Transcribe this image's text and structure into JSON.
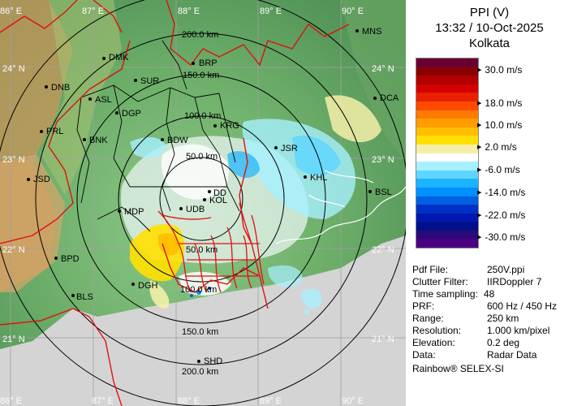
{
  "header": {
    "product": "PPI (V)",
    "datetime": "13:32 / 10-Oct-2025",
    "station": "Kolkata"
  },
  "legend": {
    "colors": [
      "#6a0032",
      "#8a0000",
      "#b00000",
      "#d40000",
      "#e82000",
      "#ff4a00",
      "#ff7a00",
      "#ff9c00",
      "#ffbe00",
      "#ffe000",
      "#f4efa8",
      "#ffffff",
      "#a6f0ff",
      "#5fd6ff",
      "#1ab4ff",
      "#0090ff",
      "#0060e0",
      "#0030c8",
      "#0018b0",
      "#00108a",
      "#2a0a78",
      "#4a0080"
    ],
    "labels": [
      "30.0 m/s",
      "18.0 m/s",
      "10.0 m/s",
      "2.0 m/s",
      "-6.0 m/s",
      "-14.0 m/s",
      "-22.0 m/s",
      "-30.0 m/s"
    ]
  },
  "info": [
    {
      "key": "Pdf File:",
      "value": "250V.ppi"
    },
    {
      "key": "Clutter Filter:",
      "value": "IIRDoppler 7"
    },
    {
      "key": "Time sampling:",
      "value": "48"
    },
    {
      "key": "PRF:",
      "value": "600 Hz / 450 Hz"
    },
    {
      "key": "Range:",
      "value": "250 km"
    },
    {
      "key": "Resolution:",
      "value": "1.000 km/pixel"
    },
    {
      "key": "Elevation:",
      "value": "0.2 deg"
    },
    {
      "key": "Data:",
      "value": "Radar Data"
    }
  ],
  "credit": "Rainbow® SELEX-SI",
  "map": {
    "lon_labels_top": [
      "86° E",
      "87° E",
      "88° E",
      "89° E",
      "90° E"
    ],
    "lon_labels_bottom": [
      "86° E",
      "87° E",
      "88° E",
      "89° E",
      "90° E"
    ],
    "lat_labels_left": [
      "24° N",
      "23° N",
      "22° N",
      "21° N"
    ],
    "lat_labels_right": [
      "24° N",
      "23° N",
      "22° N",
      "21° N"
    ],
    "range_labels": [
      "50.0 km",
      "100.0 km",
      "150.0 km",
      "200.0 km"
    ],
    "range_labels_south": [
      "100.0 km",
      "150.0 km",
      "200.0 km"
    ],
    "range_label_north_extra": "50.0 km",
    "stations": [
      {
        "code": "MNS"
      },
      {
        "code": "DMK"
      },
      {
        "code": "BRP"
      },
      {
        "code": "DNB"
      },
      {
        "code": "SUR"
      },
      {
        "code": "ASL"
      },
      {
        "code": "DCA"
      },
      {
        "code": "DGP"
      },
      {
        "code": "PRL"
      },
      {
        "code": "KRG"
      },
      {
        "code": "BNK"
      },
      {
        "code": "BDW"
      },
      {
        "code": "JSR"
      },
      {
        "code": "JSD"
      },
      {
        "code": "KHL"
      },
      {
        "code": "DD"
      },
      {
        "code": "KOL"
      },
      {
        "code": "BSL"
      },
      {
        "code": "MDP"
      },
      {
        "code": "UDB"
      },
      {
        "code": "BPD"
      },
      {
        "code": "DGH"
      },
      {
        "code": "BLS"
      },
      {
        "code": "SHD"
      }
    ]
  }
}
